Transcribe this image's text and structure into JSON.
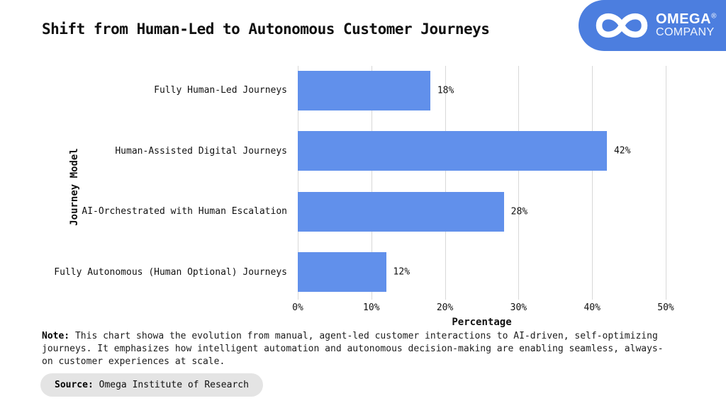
{
  "title": "Shift from Human-Led to Autonomous Customer Journeys",
  "logo": {
    "icon": "infinity-icon",
    "name": "OMEGA",
    "registered": "®",
    "subname": "COMPANY",
    "bg_color": "#4C7EDF"
  },
  "chart_data": {
    "type": "bar",
    "orientation": "horizontal",
    "title": "Shift from Human-Led to Autonomous Customer Journeys",
    "categories": [
      "Fully Human-Led Journeys",
      "Human-Assisted Digital Journeys",
      "AI-Orchestrated with Human Escalation",
      "Fully Autonomous (Human Optional) Journeys"
    ],
    "values": [
      18,
      42,
      28,
      12
    ],
    "value_labels": [
      "18%",
      "42%",
      "28%",
      "12%"
    ],
    "xlabel": "Percentage",
    "ylabel": "Journey Model",
    "xlim": [
      0,
      50
    ],
    "x_ticks": [
      0,
      10,
      20,
      30,
      40,
      50
    ],
    "x_tick_labels": [
      "0%",
      "10%",
      "20%",
      "30%",
      "40%",
      "50%"
    ],
    "grid": true,
    "bar_color": "#6190EB",
    "gridline_color": "#d8d8d8"
  },
  "note": {
    "label": "Note:",
    "text": " This chart showa the evolution from manual, agent-led customer interactions to AI-driven, self-optimizing journeys. It emphasizes how intelligent automation and autonomous decision-making are enabling seamless, always-on customer experiences at scale."
  },
  "source": {
    "label": "Source:",
    "text": " Omega Institute of Research"
  }
}
